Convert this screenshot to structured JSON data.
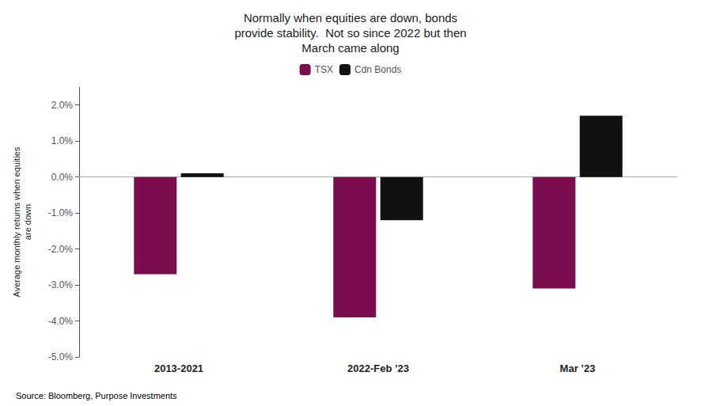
{
  "chart_data": {
    "type": "bar",
    "title": "Normally when equities are down, bonds\nprovide stability.  Not so since 2022 but then\nMarch came along",
    "ylabel": "Average monthly returns when equities\nare down",
    "source": "Source: Bloomberg, Purpose Investments",
    "categories": [
      "2013-2021",
      "2022-Feb ’23",
      "Mar ’23"
    ],
    "series": [
      {
        "name": "TSX",
        "color": "#7B0D4E",
        "values": [
          -2.7,
          -3.9,
          -3.1
        ]
      },
      {
        "name": "Cdn Bonds",
        "color": "#111111",
        "values": [
          0.1,
          -1.2,
          1.7
        ]
      }
    ],
    "ylim": [
      -5.0,
      2.5
    ],
    "yticks": [
      {
        "value": -5.0,
        "label": "-5.0%"
      },
      {
        "value": -4.0,
        "label": "-4.0%"
      },
      {
        "value": -3.0,
        "label": "-3.0%"
      },
      {
        "value": -2.0,
        "label": "-2.0%"
      },
      {
        "value": -1.0,
        "label": "-1.0%"
      },
      {
        "value": 0.0,
        "label": "0.0%"
      },
      {
        "value": 1.0,
        "label": "1.0%"
      },
      {
        "value": 2.0,
        "label": "2.0%"
      }
    ],
    "grid": false,
    "legend": "top"
  }
}
